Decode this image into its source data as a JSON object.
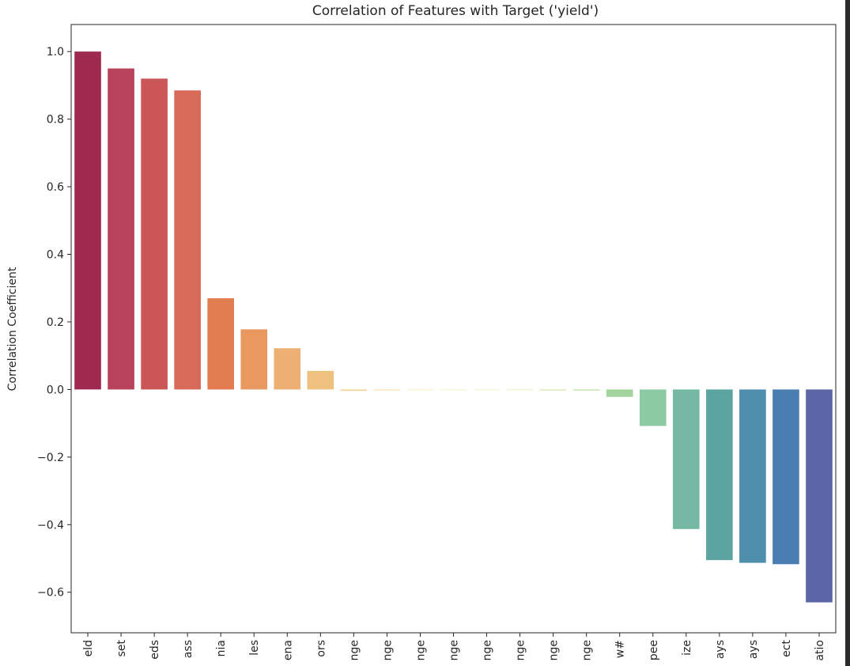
{
  "chart_data": {
    "type": "bar",
    "title": "Correlation of Features with Target ('yield')",
    "xlabel": "",
    "ylabel": "Correlation Coefficient",
    "ylim": [
      -0.72,
      1.08
    ],
    "yticks": [
      -0.6,
      -0.4,
      -0.2,
      0.0,
      0.2,
      0.4,
      0.6,
      0.8,
      1.0
    ],
    "ytick_labels": [
      "−0.6",
      "−0.4",
      "−0.2",
      "0.0",
      "0.2",
      "0.4",
      "0.6",
      "0.8",
      "1.0"
    ],
    "grid": false,
    "categories": [
      "eld",
      "set",
      "eds",
      "ass",
      "nia",
      "les",
      "ena",
      "ors",
      "nge",
      "nge",
      "nge",
      "nge",
      "nge",
      "nge",
      "nge",
      "nge",
      "w#",
      "pee",
      "ize",
      "ays",
      "ays",
      "ect",
      "atio"
    ],
    "values": [
      1.0,
      0.95,
      0.92,
      0.885,
      0.27,
      0.178,
      0.122,
      0.055,
      -0.004,
      -0.003,
      -0.002,
      -0.002,
      -0.002,
      -0.002,
      -0.003,
      -0.003,
      -0.022,
      -0.108,
      -0.413,
      -0.505,
      -0.513,
      -0.517,
      -0.63
    ],
    "colors": [
      "#9e2a4f",
      "#b7425a",
      "#cb5658",
      "#d86a5a",
      "#e27d52",
      "#e9995f",
      "#eeaf72",
      "#efc17f",
      "#f2d59a",
      "#f5e3a9",
      "#f6edb6",
      "#f4f1bd",
      "#eef0bb",
      "#e2ebb6",
      "#d3e6ab",
      "#bce1a2",
      "#a2d59e",
      "#8ccaa4",
      "#75b9a5",
      "#5ca4a2",
      "#4e8fae",
      "#4a7eb2",
      "#5a66a7"
    ]
  }
}
